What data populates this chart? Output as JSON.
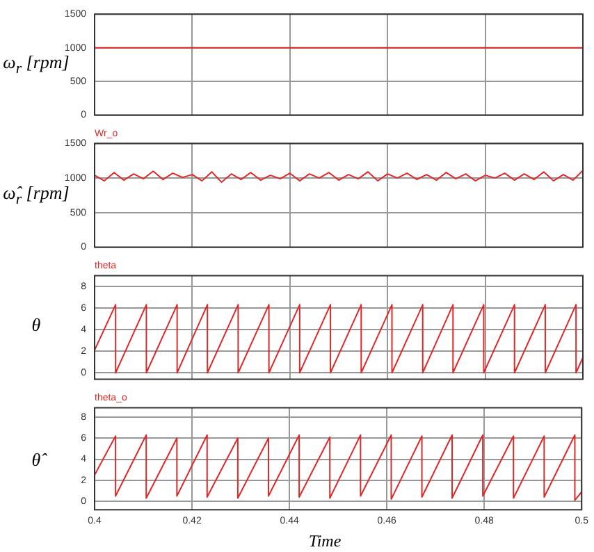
{
  "chart_data": [
    {
      "type": "line",
      "ylabel": "ω$_{r}$ [rpm]",
      "color": "#e02828",
      "grid": true,
      "tick_labels": "y",
      "xlim": [
        0.4,
        0.5
      ],
      "xticks": [
        0.4,
        0.42,
        0.44,
        0.46,
        0.48,
        0.5
      ],
      "ylim": [
        0,
        1500
      ],
      "yticks": [
        0,
        500,
        1000,
        1500
      ],
      "x": [
        0.4,
        0.41,
        0.42,
        0.43,
        0.44,
        0.45,
        0.46,
        0.47,
        0.48,
        0.49,
        0.5
      ],
      "values": [
        1000,
        1000,
        1000,
        1000,
        1000,
        1000,
        1000,
        1000,
        1000,
        1000,
        1000
      ]
    },
    {
      "type": "line",
      "title": "Wr_o",
      "ylabel": "ω̂$_{r}$ [rpm]",
      "color": "#e02828",
      "grid": true,
      "tick_labels": "y",
      "xlim": [
        0.4,
        0.5
      ],
      "xticks": [
        0.4,
        0.42,
        0.44,
        0.46,
        0.48,
        0.5
      ],
      "ylim": [
        0,
        1500
      ],
      "yticks": [
        0,
        500,
        1000,
        1500
      ],
      "x": [
        0.4,
        0.402,
        0.404,
        0.406,
        0.408,
        0.41,
        0.412,
        0.414,
        0.416,
        0.418,
        0.42,
        0.422,
        0.424,
        0.426,
        0.428,
        0.43,
        0.432,
        0.434,
        0.436,
        0.438,
        0.44,
        0.442,
        0.444,
        0.446,
        0.448,
        0.45,
        0.452,
        0.454,
        0.456,
        0.458,
        0.46,
        0.462,
        0.464,
        0.466,
        0.468,
        0.47,
        0.472,
        0.474,
        0.476,
        0.478,
        0.48,
        0.482,
        0.484,
        0.486,
        0.488,
        0.49,
        0.492,
        0.494,
        0.496,
        0.498,
        0.5
      ],
      "values": [
        1040,
        960,
        1080,
        970,
        1060,
        990,
        1100,
        980,
        1070,
        1010,
        1050,
        960,
        1090,
        940,
        1060,
        980,
        1080,
        970,
        1040,
        990,
        1070,
        960,
        1060,
        1000,
        1080,
        970,
        1050,
        990,
        1090,
        960,
        1060,
        1000,
        1070,
        980,
        1050,
        970,
        1080,
        990,
        1060,
        960,
        1040,
        1000,
        1070,
        970,
        1060,
        980,
        1090,
        960,
        1050,
        970,
        1110
      ]
    },
    {
      "type": "line",
      "title": "theta",
      "ylabel": "θ",
      "color": "#e02828",
      "grid": true,
      "tick_labels": "y",
      "xlim": [
        0.4,
        0.5
      ],
      "xticks": [
        0.4,
        0.42,
        0.44,
        0.46,
        0.48,
        0.5
      ],
      "ylim": [
        -0.6,
        9
      ],
      "yticks": [
        0,
        2,
        4,
        6,
        8
      ],
      "x": [
        0.4,
        0.4043,
        0.4043,
        0.4106,
        0.4106,
        0.4169,
        0.4169,
        0.4231,
        0.4231,
        0.4294,
        0.4294,
        0.4357,
        0.4357,
        0.442,
        0.442,
        0.4483,
        0.4483,
        0.4546,
        0.4546,
        0.4609,
        0.4609,
        0.4672,
        0.4672,
        0.4734,
        0.4734,
        0.4797,
        0.4797,
        0.486,
        0.486,
        0.4923,
        0.4923,
        0.4986,
        0.4986,
        0.5
      ],
      "values": [
        2.1,
        6.3,
        0,
        6.3,
        0,
        6.3,
        0,
        6.3,
        0,
        6.3,
        0,
        6.3,
        0,
        6.3,
        0,
        6.3,
        0,
        6.3,
        0,
        6.3,
        0,
        6.3,
        0,
        6.3,
        0,
        6.3,
        0,
        6.3,
        0,
        6.3,
        0,
        6.3,
        0,
        1.4
      ]
    },
    {
      "type": "line",
      "title": "theta_o",
      "ylabel": "θ̂",
      "xlabel": "Time",
      "color": "#e02828",
      "grid": true,
      "xlim": [
        0.4,
        0.5
      ],
      "xticks": [
        0.4,
        0.42,
        0.44,
        0.46,
        0.48,
        0.5
      ],
      "ylim": [
        -0.8,
        8.9
      ],
      "yticks": [
        0,
        2,
        4,
        6,
        8
      ],
      "x": [
        0.4,
        0.4043,
        0.4043,
        0.4106,
        0.4106,
        0.4169,
        0.4169,
        0.4231,
        0.4231,
        0.4294,
        0.4294,
        0.4357,
        0.4357,
        0.442,
        0.442,
        0.4483,
        0.4483,
        0.4546,
        0.4546,
        0.4609,
        0.4609,
        0.4672,
        0.4672,
        0.4734,
        0.4734,
        0.4797,
        0.4797,
        0.486,
        0.486,
        0.4923,
        0.4923,
        0.4986,
        0.4986,
        0.5
      ],
      "values": [
        2.5,
        6.2,
        0.5,
        6.3,
        0.3,
        6.0,
        0.5,
        6.3,
        0.4,
        6.0,
        0.3,
        6.0,
        0.5,
        6.3,
        0.4,
        6.1,
        0.3,
        6.3,
        0.5,
        6.3,
        0.2,
        6.2,
        0.4,
        6.3,
        0.3,
        6.3,
        0.5,
        6.2,
        0.3,
        6.2,
        0.4,
        6.3,
        0.1,
        0.9
      ]
    }
  ]
}
